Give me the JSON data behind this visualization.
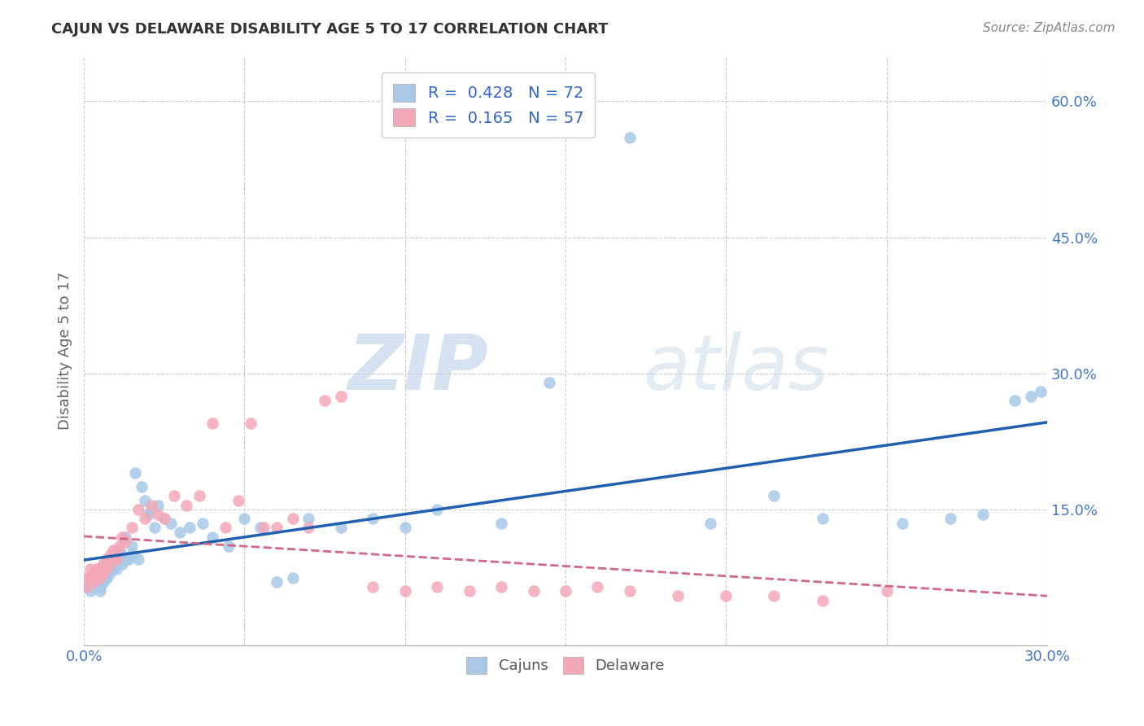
{
  "title": "CAJUN VS DELAWARE DISABILITY AGE 5 TO 17 CORRELATION CHART",
  "source": "Source: ZipAtlas.com",
  "ylabel": "Disability Age 5 to 17",
  "xlim": [
    0.0,
    0.3
  ],
  "ylim": [
    0.0,
    0.65
  ],
  "xticks": [
    0.0,
    0.05,
    0.1,
    0.15,
    0.2,
    0.25,
    0.3
  ],
  "xtick_labels": [
    "0.0%",
    "",
    "",
    "",
    "",
    "",
    "30.0%"
  ],
  "yticks": [
    0.0,
    0.15,
    0.3,
    0.45,
    0.6
  ],
  "ytick_labels": [
    "",
    "15.0%",
    "30.0%",
    "45.0%",
    "60.0%"
  ],
  "cajuns_R": 0.428,
  "cajuns_N": 72,
  "delaware_R": 0.165,
  "delaware_N": 57,
  "cajuns_color": "#a8c8e8",
  "delaware_color": "#f4a8b8",
  "cajuns_line_color": "#2060b0",
  "delaware_line_color": "#d06888",
  "watermark_zip": "ZIP",
  "watermark_atlas": "atlas",
  "background_color": "#ffffff",
  "grid_color": "#cccccc",
  "title_color": "#333333",
  "source_color": "#888888",
  "tick_color": "#4477cc",
  "ylabel_color": "#666666",
  "legend_text_color": "#555555",
  "legend_num_color": "#3366cc",
  "cajuns_x": [
    0.001,
    0.002,
    0.002,
    0.003,
    0.003,
    0.003,
    0.004,
    0.004,
    0.004,
    0.005,
    0.005,
    0.005,
    0.006,
    0.006,
    0.006,
    0.006,
    0.007,
    0.007,
    0.007,
    0.008,
    0.008,
    0.008,
    0.009,
    0.009,
    0.01,
    0.01,
    0.01,
    0.011,
    0.011,
    0.012,
    0.012,
    0.013,
    0.013,
    0.014,
    0.015,
    0.015,
    0.016,
    0.017,
    0.018,
    0.019,
    0.02,
    0.021,
    0.022,
    0.023,
    0.025,
    0.027,
    0.03,
    0.033,
    0.037,
    0.04,
    0.045,
    0.05,
    0.055,
    0.06,
    0.065,
    0.07,
    0.08,
    0.09,
    0.1,
    0.11,
    0.13,
    0.145,
    0.17,
    0.195,
    0.215,
    0.23,
    0.255,
    0.27,
    0.28,
    0.29,
    0.295,
    0.298
  ],
  "cajuns_y": [
    0.065,
    0.06,
    0.075,
    0.07,
    0.065,
    0.08,
    0.07,
    0.08,
    0.075,
    0.065,
    0.075,
    0.06,
    0.07,
    0.08,
    0.075,
    0.09,
    0.075,
    0.085,
    0.075,
    0.08,
    0.09,
    0.085,
    0.085,
    0.095,
    0.09,
    0.1,
    0.085,
    0.095,
    0.105,
    0.09,
    0.1,
    0.095,
    0.12,
    0.095,
    0.11,
    0.1,
    0.19,
    0.095,
    0.175,
    0.16,
    0.145,
    0.15,
    0.13,
    0.155,
    0.14,
    0.135,
    0.125,
    0.13,
    0.135,
    0.12,
    0.11,
    0.14,
    0.13,
    0.07,
    0.075,
    0.14,
    0.13,
    0.14,
    0.13,
    0.15,
    0.135,
    0.29,
    0.56,
    0.135,
    0.165,
    0.14,
    0.135,
    0.14,
    0.145,
    0.27,
    0.275,
    0.28
  ],
  "delaware_x": [
    0.001,
    0.001,
    0.002,
    0.002,
    0.003,
    0.003,
    0.004,
    0.004,
    0.005,
    0.005,
    0.005,
    0.006,
    0.006,
    0.007,
    0.007,
    0.008,
    0.008,
    0.009,
    0.009,
    0.01,
    0.01,
    0.011,
    0.012,
    0.013,
    0.015,
    0.017,
    0.019,
    0.021,
    0.023,
    0.025,
    0.028,
    0.032,
    0.036,
    0.04,
    0.044,
    0.048,
    0.052,
    0.056,
    0.06,
    0.065,
    0.07,
    0.075,
    0.08,
    0.09,
    0.1,
    0.11,
    0.12,
    0.13,
    0.14,
    0.15,
    0.16,
    0.17,
    0.185,
    0.2,
    0.215,
    0.23,
    0.25
  ],
  "delaware_y": [
    0.065,
    0.075,
    0.075,
    0.085,
    0.07,
    0.08,
    0.085,
    0.075,
    0.075,
    0.085,
    0.08,
    0.09,
    0.08,
    0.095,
    0.085,
    0.1,
    0.09,
    0.095,
    0.105,
    0.095,
    0.105,
    0.11,
    0.12,
    0.115,
    0.13,
    0.15,
    0.14,
    0.155,
    0.145,
    0.14,
    0.165,
    0.155,
    0.165,
    0.245,
    0.13,
    0.16,
    0.245,
    0.13,
    0.13,
    0.14,
    0.13,
    0.27,
    0.275,
    0.065,
    0.06,
    0.065,
    0.06,
    0.065,
    0.06,
    0.06,
    0.065,
    0.06,
    0.055,
    0.055,
    0.055,
    0.05,
    0.06
  ]
}
